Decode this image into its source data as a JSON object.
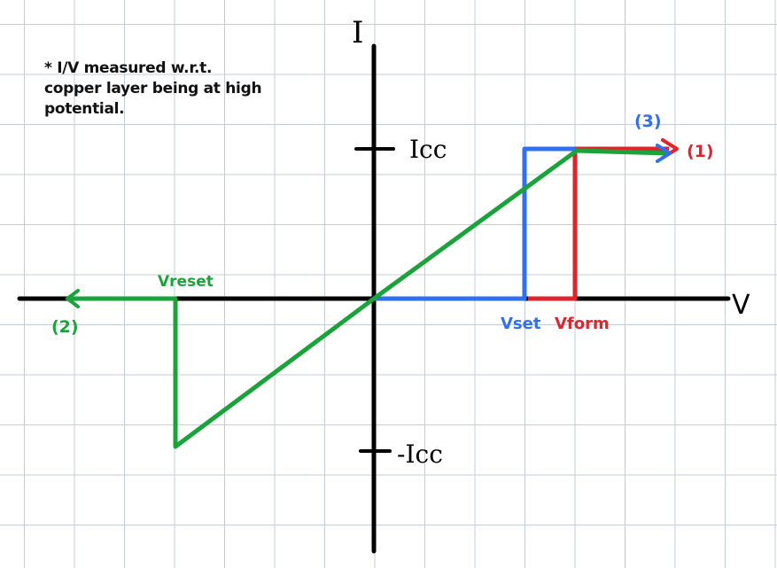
{
  "axes": {
    "y_label": "I",
    "x_label": "V",
    "icc_label": "Icc",
    "neg_icc_label": "-Icc"
  },
  "note": {
    "line1": "* I/V measured w.r.t.",
    "line2": "copper layer being at high",
    "line3": "potential."
  },
  "annotations": {
    "vreset": "Vreset",
    "vset": "Vset",
    "vform": "Vform",
    "curve1": "(1)",
    "curve2": "(2)",
    "curve3": "(3)"
  },
  "colors": {
    "axis": "#000000",
    "green": "#1aa33a",
    "blue": "#2f6ff0",
    "red": "#e0242c",
    "grid": "#c3cdd8"
  }
}
